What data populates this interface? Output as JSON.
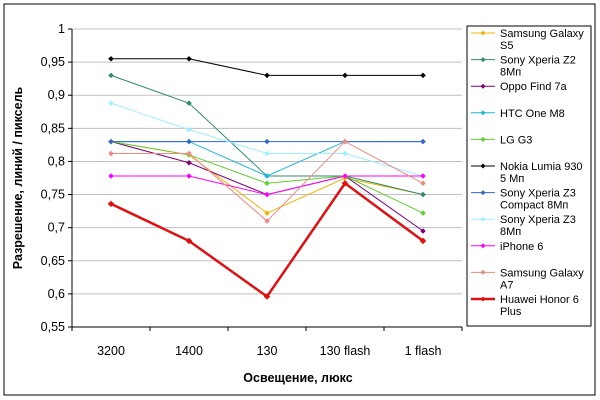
{
  "chart_data": {
    "type": "line",
    "categories": [
      "3200",
      "1400",
      "130",
      "130 flash",
      "1 flash"
    ],
    "xlabel": "Освещение, люкс",
    "ylabel": "Разрешение, линий / пиксель",
    "ylim": [
      0.55,
      1.0
    ],
    "yticks": [
      "0,55",
      "0,6",
      "0,65",
      "0,7",
      "0,75",
      "0,8",
      "0,85",
      "0,9",
      "0,95",
      "1"
    ],
    "grid": "horizontal",
    "legend": "right",
    "series": [
      {
        "name": [
          "Samsung Galaxy",
          "S5"
        ],
        "color": "#f0b400",
        "values": [
          0.83,
          0.81,
          0.722,
          0.775,
          0.75
        ]
      },
      {
        "name": [
          "Sony Xperia Z2",
          "8Мп"
        ],
        "color": "#2e8b6e",
        "values": [
          0.93,
          0.888,
          0.778,
          0.778,
          0.75
        ]
      },
      {
        "name": [
          "Oppo Find 7a"
        ],
        "color": "#800080",
        "values": [
          0.83,
          0.798,
          0.75,
          0.778,
          0.695
        ]
      },
      {
        "name": [
          "HTC One M8"
        ],
        "color": "#1ab8d8",
        "values": [
          0.83,
          0.83,
          0.778,
          0.83,
          0.83
        ]
      },
      {
        "name": [
          "LG G3"
        ],
        "color": "#5fcf2a",
        "values": [
          0.83,
          0.81,
          0.767,
          0.778,
          0.722
        ]
      },
      {
        "name": [
          "Nokia Lumia 930",
          "5 Мп"
        ],
        "color": "#000000",
        "values": [
          0.955,
          0.955,
          0.93,
          0.93,
          0.93
        ]
      },
      {
        "name": [
          "Sony Xperia Z3",
          "Compact 8Мп"
        ],
        "color": "#3366cc",
        "values": [
          0.83,
          0.83,
          0.83,
          0.83,
          0.83
        ]
      },
      {
        "name": [
          "Sony Xperia Z3",
          "8Мп"
        ],
        "color": "#9ff0ff",
        "values": [
          0.888,
          0.848,
          0.812,
          0.812,
          0.778
        ]
      },
      {
        "name": [
          "iPhone 6"
        ],
        "color": "#ff00ff",
        "values": [
          0.778,
          0.778,
          0.75,
          0.778,
          0.778
        ]
      },
      {
        "name": [
          "Samsung Galaxy",
          "A7"
        ],
        "color": "#f08a80",
        "values": [
          0.812,
          0.812,
          0.71,
          0.83,
          0.767
        ]
      },
      {
        "name": [
          "Huawei Honor 6",
          "Plus"
        ],
        "color": "#e01010",
        "values": [
          0.736,
          0.68,
          0.596,
          0.767,
          0.68
        ],
        "bold": true
      }
    ]
  }
}
